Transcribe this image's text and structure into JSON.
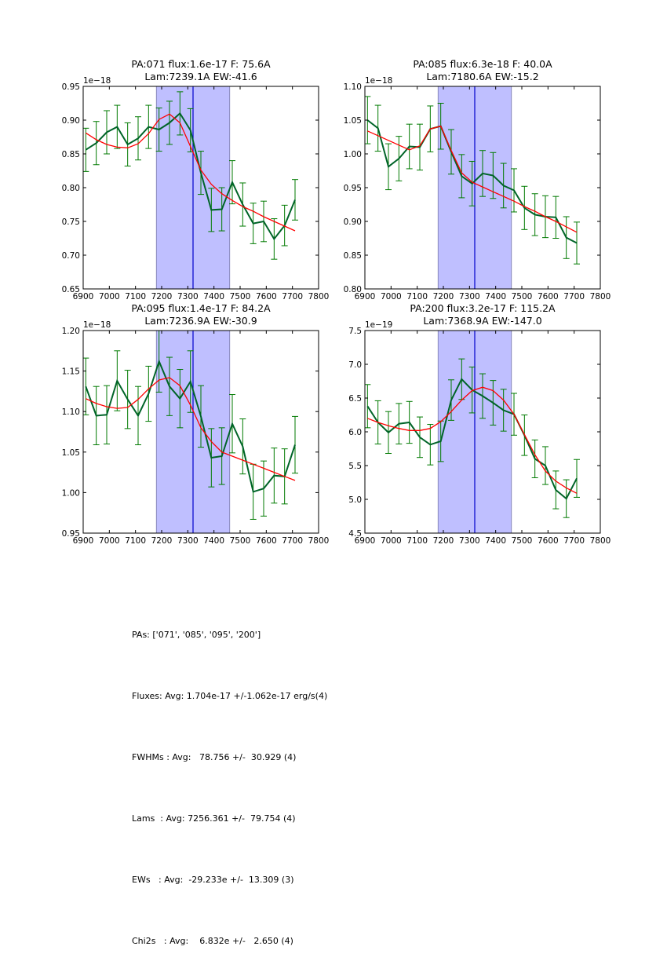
{
  "chart_data": [
    {
      "type": "line",
      "title": "PA:071 flux:1.6e-17 F: 75.6A\nLam:7239.1A EW:-41.6",
      "title_lines": [
        "PA:071 flux:1.6e-17 F: 75.6A",
        "Lam:7239.1A EW:-41.6"
      ],
      "offset_label": "1e−18",
      "xlim": [
        6900,
        7800
      ],
      "ylim": [
        0.65,
        0.95
      ],
      "xticks": [
        "6900",
        "7000",
        "7100",
        "7200",
        "7300",
        "7400",
        "7500",
        "7600",
        "7700",
        "7800"
      ],
      "yticks": [
        "0.65",
        "0.70",
        "0.75",
        "0.80",
        "0.85",
        "0.90",
        "0.95"
      ],
      "shaded_region": [
        7180,
        7460
      ],
      "center_line": 7320,
      "x": [
        6910,
        6950,
        6990,
        7030,
        7070,
        7110,
        7150,
        7190,
        7230,
        7270,
        7310,
        7350,
        7390,
        7430,
        7470,
        7510,
        7550,
        7590,
        7630,
        7670,
        7710
      ],
      "series": [
        {
          "name": "data",
          "color": "#006428",
          "values": [
            0.856,
            0.866,
            0.882,
            0.89,
            0.864,
            0.873,
            0.89,
            0.886,
            0.896,
            0.91,
            0.885,
            0.822,
            0.767,
            0.768,
            0.808,
            0.775,
            0.747,
            0.75,
            0.724,
            0.744,
            0.782
          ],
          "errors": [
            0.032,
            0.032,
            0.032,
            0.032,
            0.032,
            0.032,
            0.032,
            0.032,
            0.032,
            0.032,
            0.032,
            0.032,
            0.032,
            0.032,
            0.032,
            0.032,
            0.03,
            0.03,
            0.03,
            0.03,
            0.03
          ]
        },
        {
          "name": "fit",
          "color": "#ff0000",
          "values": [
            0.881,
            0.871,
            0.864,
            0.86,
            0.859,
            0.865,
            0.88,
            0.901,
            0.909,
            0.896,
            0.861,
            0.826,
            0.805,
            0.791,
            0.781,
            0.772,
            0.765,
            0.757,
            0.75,
            0.743,
            0.736
          ]
        }
      ]
    },
    {
      "type": "line",
      "title": "PA:085 flux:6.3e-18 F: 40.0A\nLam:7180.6A EW:-15.2",
      "title_lines": [
        "PA:085 flux:6.3e-18 F: 40.0A",
        "Lam:7180.6A EW:-15.2"
      ],
      "offset_label": "1e−18",
      "xlim": [
        6900,
        7800
      ],
      "ylim": [
        0.8,
        1.1
      ],
      "xticks": [
        "6900",
        "7000",
        "7100",
        "7200",
        "7300",
        "7400",
        "7500",
        "7600",
        "7700",
        "7800"
      ],
      "yticks": [
        "0.80",
        "0.85",
        "0.90",
        "0.95",
        "1.00",
        "1.05",
        "1.10"
      ],
      "shaded_region": [
        7180,
        7460
      ],
      "center_line": 7320,
      "x": [
        6910,
        6950,
        6990,
        7030,
        7070,
        7110,
        7150,
        7190,
        7230,
        7270,
        7310,
        7350,
        7390,
        7430,
        7470,
        7510,
        7550,
        7590,
        7630,
        7670,
        7710
      ],
      "series": [
        {
          "name": "data",
          "color": "#006428",
          "values": [
            1.05,
            1.038,
            0.981,
            0.993,
            1.011,
            1.01,
            1.037,
            1.041,
            1.003,
            0.967,
            0.956,
            0.971,
            0.968,
            0.953,
            0.946,
            0.92,
            0.91,
            0.907,
            0.906,
            0.876,
            0.868
          ],
          "errors": [
            0.035,
            0.034,
            0.034,
            0.033,
            0.033,
            0.034,
            0.034,
            0.034,
            0.033,
            0.032,
            0.033,
            0.034,
            0.034,
            0.033,
            0.032,
            0.032,
            0.031,
            0.031,
            0.031,
            0.031,
            0.031
          ]
        },
        {
          "name": "fit",
          "color": "#ff0000",
          "values": [
            1.034,
            1.027,
            1.02,
            1.013,
            1.006,
            1.012,
            1.037,
            1.041,
            1.005,
            0.972,
            0.958,
            0.951,
            0.944,
            0.937,
            0.93,
            0.922,
            0.915,
            0.907,
            0.9,
            0.892,
            0.884
          ]
        }
      ]
    },
    {
      "type": "line",
      "title": "PA:095 flux:1.4e-17 F: 84.2A\nLam:7236.9A EW:-30.9",
      "title_lines": [
        "PA:095 flux:1.4e-17 F: 84.2A",
        "Lam:7236.9A EW:-30.9"
      ],
      "offset_label": "1e−18",
      "xlim": [
        6900,
        7800
      ],
      "ylim": [
        0.95,
        1.2
      ],
      "xticks": [
        "6900",
        "7000",
        "7100",
        "7200",
        "7300",
        "7400",
        "7500",
        "7600",
        "7700",
        "7800"
      ],
      "yticks": [
        "0.95",
        "1.00",
        "1.05",
        "1.10",
        "1.15",
        "1.20"
      ],
      "shaded_region": [
        7180,
        7460
      ],
      "center_line": 7320,
      "x": [
        6910,
        6950,
        6990,
        7030,
        7070,
        7110,
        7150,
        7190,
        7230,
        7270,
        7310,
        7350,
        7390,
        7430,
        7470,
        7510,
        7550,
        7590,
        7630,
        7670,
        7710
      ],
      "series": [
        {
          "name": "data",
          "color": "#006428",
          "values": [
            1.131,
            1.095,
            1.096,
            1.138,
            1.115,
            1.095,
            1.122,
            1.162,
            1.131,
            1.116,
            1.137,
            1.094,
            1.043,
            1.045,
            1.085,
            1.057,
            1.001,
            1.005,
            1.021,
            1.02,
            1.059
          ],
          "errors": [
            0.035,
            0.036,
            0.036,
            0.037,
            0.036,
            0.036,
            0.034,
            0.038,
            0.036,
            0.036,
            0.038,
            0.038,
            0.036,
            0.035,
            0.036,
            0.034,
            0.034,
            0.034,
            0.034,
            0.034,
            0.035
          ]
        },
        {
          "name": "fit",
          "color": "#ff0000",
          "values": [
            1.116,
            1.11,
            1.106,
            1.104,
            1.105,
            1.115,
            1.128,
            1.139,
            1.142,
            1.132,
            1.108,
            1.08,
            1.063,
            1.05,
            1.045,
            1.04,
            1.035,
            1.03,
            1.025,
            1.02,
            1.015
          ]
        }
      ]
    },
    {
      "type": "line",
      "title": "PA:200 flux:3.2e-17 F: 115.2A\nLam:7368.9A EW:-147.0",
      "title_lines": [
        "PA:200 flux:3.2e-17 F: 115.2A",
        "Lam:7368.9A EW:-147.0"
      ],
      "offset_label": "1e−19",
      "xlim": [
        6900,
        7800
      ],
      "ylim": [
        4.5,
        7.5
      ],
      "xticks": [
        "6900",
        "7000",
        "7100",
        "7200",
        "7300",
        "7400",
        "7500",
        "7600",
        "7700",
        "7800"
      ],
      "yticks": [
        "4.5",
        "5.0",
        "5.5",
        "6.0",
        "6.5",
        "7.0",
        "7.5"
      ],
      "shaded_region": [
        7180,
        7460
      ],
      "center_line": 7320,
      "x": [
        6910,
        6950,
        6990,
        7030,
        7070,
        7110,
        7150,
        7190,
        7230,
        7270,
        7310,
        7350,
        7390,
        7430,
        7470,
        7510,
        7550,
        7590,
        7630,
        7670,
        7710
      ],
      "series": [
        {
          "name": "data",
          "color": "#006428",
          "values": [
            6.38,
            6.14,
            5.99,
            6.12,
            6.14,
            5.92,
            5.81,
            5.86,
            6.47,
            6.78,
            6.62,
            6.53,
            6.43,
            6.32,
            6.26,
            5.95,
            5.6,
            5.5,
            5.14,
            5.01,
            5.31
          ],
          "errors": [
            0.32,
            0.32,
            0.31,
            0.3,
            0.31,
            0.3,
            0.3,
            0.3,
            0.3,
            0.3,
            0.34,
            0.33,
            0.33,
            0.31,
            0.31,
            0.3,
            0.28,
            0.28,
            0.28,
            0.28,
            0.28
          ]
        },
        {
          "name": "fit",
          "color": "#ff0000",
          "values": [
            6.2,
            6.14,
            6.09,
            6.05,
            6.02,
            6.02,
            6.05,
            6.15,
            6.3,
            6.47,
            6.61,
            6.66,
            6.61,
            6.47,
            6.26,
            5.96,
            5.66,
            5.42,
            5.27,
            5.17,
            5.09
          ]
        }
      ]
    }
  ],
  "colors": {
    "data_line": "#006428",
    "errorbar": "#007a00",
    "fit_line": "#ff0000",
    "shade_fill": "#bfbfff",
    "shade_edge": "#8888bb",
    "center_line": "#0000cc"
  },
  "summary": {
    "pas": "PAs: ['071', '085', '095', '200']",
    "fluxes": "Fluxes: Avg: 1.704e-17 +/-1.062e-17 erg/s(4)",
    "fwhms": "FWHMs : Avg:   78.756 +/-  30.929 (4)",
    "lams": "Lams  : Avg: 7256.361 +/-  79.754 (4)",
    "ews": "EWs   : Avg:  -29.233e +/-  13.309 (3)",
    "chi2s": "Chi2s   : Avg:    6.832e +/-   2.650 (4)"
  }
}
